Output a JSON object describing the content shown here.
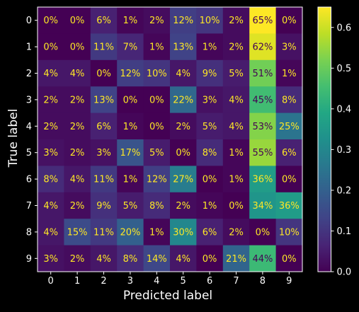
{
  "chart_data": {
    "type": "heatmap",
    "title": "",
    "xlabel": "Predicted label",
    "ylabel": "True label",
    "x_categories": [
      "0",
      "1",
      "2",
      "3",
      "4",
      "5",
      "6",
      "7",
      "8",
      "9"
    ],
    "y_categories": [
      "0",
      "1",
      "2",
      "3",
      "4",
      "5",
      "6",
      "7",
      "8",
      "9"
    ],
    "values": [
      [
        0.0,
        0.0,
        0.06,
        0.01,
        0.02,
        0.12,
        0.1,
        0.02,
        0.65,
        0.0
      ],
      [
        0.0,
        0.0,
        0.11,
        0.07,
        0.01,
        0.13,
        0.01,
        0.02,
        0.62,
        0.03
      ],
      [
        0.04,
        0.04,
        0.0,
        0.12,
        0.1,
        0.04,
        0.09,
        0.05,
        0.51,
        0.01
      ],
      [
        0.02,
        0.02,
        0.13,
        0.0,
        0.0,
        0.22,
        0.03,
        0.04,
        0.45,
        0.08
      ],
      [
        0.02,
        0.02,
        0.06,
        0.01,
        0.0,
        0.02,
        0.05,
        0.04,
        0.53,
        0.25
      ],
      [
        0.03,
        0.02,
        0.03,
        0.17,
        0.05,
        0.0,
        0.08,
        0.01,
        0.55,
        0.06
      ],
      [
        0.08,
        0.04,
        0.11,
        0.01,
        0.12,
        0.27,
        0.0,
        0.01,
        0.36,
        0.0
      ],
      [
        0.04,
        0.02,
        0.09,
        0.05,
        0.08,
        0.02,
        0.01,
        0.0,
        0.34,
        0.36
      ],
      [
        0.04,
        0.15,
        0.11,
        0.2,
        0.01,
        0.3,
        0.06,
        0.02,
        0.0,
        0.1
      ],
      [
        0.03,
        0.02,
        0.04,
        0.08,
        0.14,
        0.04,
        0.0,
        0.21,
        0.44,
        0.0
      ]
    ],
    "cell_labels": [
      [
        "0%",
        "0%",
        "6%",
        "1%",
        "2%",
        "12%",
        "10%",
        "2%",
        "65%",
        "0%"
      ],
      [
        "0%",
        "0%",
        "11%",
        "7%",
        "1%",
        "13%",
        "1%",
        "2%",
        "62%",
        "3%"
      ],
      [
        "4%",
        "4%",
        "0%",
        "12%",
        "10%",
        "4%",
        "9%",
        "5%",
        "51%",
        "1%"
      ],
      [
        "2%",
        "2%",
        "13%",
        "0%",
        "0%",
        "22%",
        "3%",
        "4%",
        "45%",
        "8%"
      ],
      [
        "2%",
        "2%",
        "6%",
        "1%",
        "0%",
        "2%",
        "5%",
        "4%",
        "53%",
        "25%"
      ],
      [
        "3%",
        "2%",
        "3%",
        "17%",
        "5%",
        "0%",
        "8%",
        "1%",
        "55%",
        "6%"
      ],
      [
        "8%",
        "4%",
        "11%",
        "1%",
        "12%",
        "27%",
        "0%",
        "1%",
        "36%",
        "0%"
      ],
      [
        "4%",
        "2%",
        "9%",
        "5%",
        "8%",
        "2%",
        "1%",
        "0%",
        "34%",
        "36%"
      ],
      [
        "4%",
        "15%",
        "11%",
        "20%",
        "1%",
        "30%",
        "6%",
        "2%",
        "0%",
        "10%"
      ],
      [
        "3%",
        "2%",
        "4%",
        "8%",
        "14%",
        "4%",
        "0%",
        "21%",
        "44%",
        "0%"
      ]
    ],
    "colormap": "viridis",
    "vmin": 0.0,
    "vmax": 0.65,
    "colorbar_ticks": [
      "0.0",
      "0.1",
      "0.2",
      "0.3",
      "0.4",
      "0.5",
      "0.6"
    ],
    "colorbar_tick_values": [
      0.0,
      0.1,
      0.2,
      0.3,
      0.4,
      0.5,
      0.6
    ],
    "colors": {
      "background": "#000000",
      "text": "#ffffff",
      "annotation_light": "#fde725",
      "annotation_dark": "#440154"
    },
    "grid": false
  }
}
